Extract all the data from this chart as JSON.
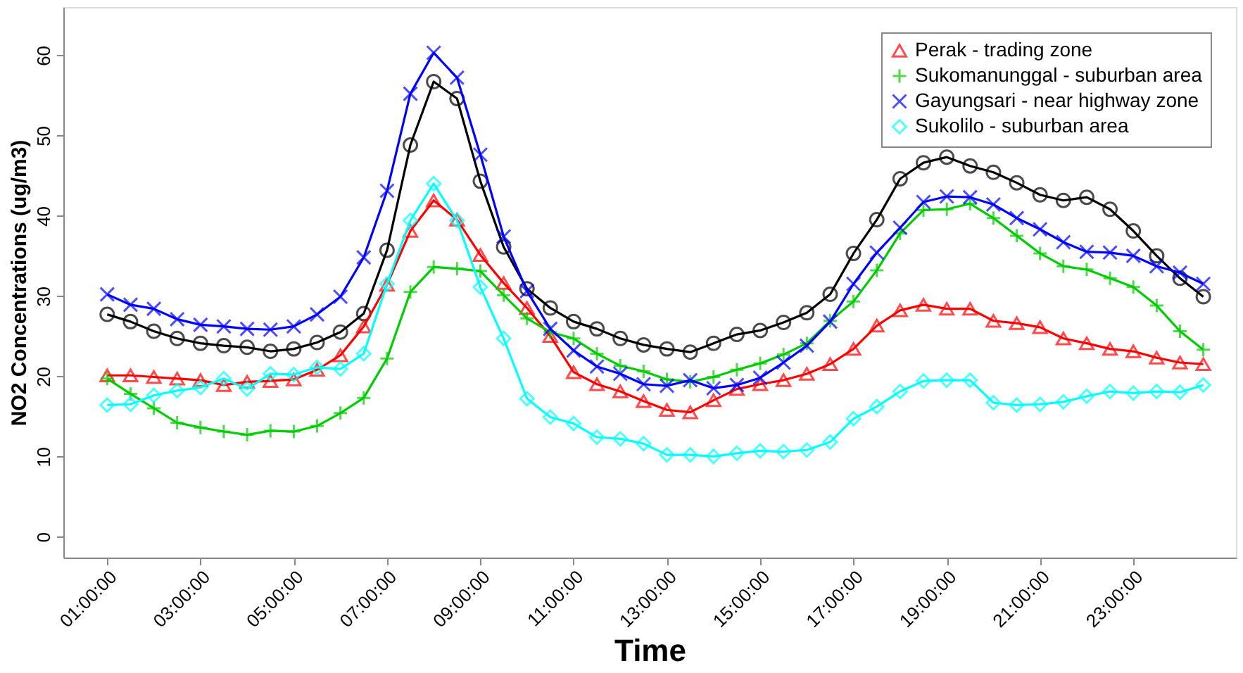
{
  "chart_data": {
    "type": "line",
    "xlabel": "Time",
    "ylabel": "NO2 Concentrations (ug/m3)",
    "x": [
      1,
      1.5,
      2,
      2.5,
      3,
      3.5,
      4,
      4.5,
      5,
      5.5,
      6,
      6.5,
      7,
      7.5,
      8,
      8.5,
      9,
      9.5,
      10,
      10.5,
      11,
      11.5,
      12,
      12.5,
      13,
      13.5,
      14,
      14.5,
      15,
      15.5,
      16,
      16.5,
      17,
      17.5,
      18,
      18.5,
      19,
      19.5,
      20,
      20.5,
      21,
      21.5,
      22,
      22.5,
      23,
      23.5,
      24,
      24.5
    ],
    "series": [
      {
        "color": "#000000",
        "marker": "circle",
        "values": [
          27.7,
          26.8,
          25.6,
          24.7,
          24.1,
          23.8,
          23.6,
          23.1,
          23.4,
          24.2,
          25.5,
          27.8,
          35.7,
          48.8,
          56.7,
          54.6,
          44.3,
          36.1,
          30.9,
          28.5,
          26.8,
          25.9,
          24.7,
          23.9,
          23.4,
          23.0,
          24.1,
          25.2,
          25.7,
          26.7,
          27.9,
          30.2,
          35.3,
          39.5,
          44.6,
          46.6,
          47.3,
          46.2,
          45.4,
          44.1,
          42.6,
          41.9,
          42.3,
          40.8,
          38.1,
          35.0,
          32.2,
          29.9
        ]
      },
      {
        "name": "Perak - trading zone",
        "color": "#ff0000",
        "marker": "triangle",
        "values": [
          20.1,
          20.1,
          19.9,
          19.7,
          19.5,
          18.9,
          19.3,
          19.4,
          19.6,
          20.8,
          22.6,
          26.2,
          31.4,
          38.1,
          41.9,
          39.5,
          35.1,
          31.6,
          28.5,
          25.0,
          20.5,
          19.0,
          18.1,
          16.9,
          15.8,
          15.5,
          17.0,
          18.4,
          19.0,
          19.5,
          20.3,
          21.5,
          23.4,
          26.3,
          28.2,
          28.9,
          28.4,
          28.4,
          26.9,
          26.6,
          26.1,
          24.7,
          24.1,
          23.4,
          23.1,
          22.3,
          21.7,
          21.5
        ]
      },
      {
        "name": "Sukomanunggal - suburban area",
        "color": "#00cd00",
        "marker": "plus",
        "values": [
          19.7,
          17.8,
          16.0,
          14.2,
          13.6,
          13.1,
          12.7,
          13.2,
          13.1,
          13.8,
          15.4,
          17.3,
          22.2,
          30.5,
          33.6,
          33.4,
          33.1,
          30.1,
          27.2,
          25.5,
          24.7,
          22.8,
          21.3,
          20.6,
          19.6,
          19.3,
          19.9,
          20.8,
          21.6,
          22.7,
          24.1,
          26.9,
          29.3,
          33.2,
          37.8,
          40.7,
          40.8,
          41.5,
          39.7,
          37.5,
          35.3,
          33.7,
          33.3,
          32.2,
          31.1,
          28.8,
          25.6,
          23.3
        ]
      },
      {
        "name": "Gayungsari - near highway zone",
        "color": "#0000ff",
        "marker": "cross",
        "values": [
          30.2,
          28.9,
          28.4,
          27.1,
          26.4,
          26.2,
          25.9,
          25.8,
          26.2,
          27.7,
          29.9,
          34.8,
          43.1,
          55.2,
          60.3,
          57.2,
          47.6,
          37.4,
          30.6,
          25.9,
          23.2,
          21.2,
          20.3,
          19.0,
          18.8,
          19.5,
          18.5,
          18.9,
          19.8,
          21.7,
          23.8,
          26.8,
          31.5,
          35.4,
          38.5,
          41.7,
          42.4,
          42.3,
          41.4,
          39.7,
          38.3,
          36.7,
          35.5,
          35.4,
          35.0,
          33.7,
          32.9,
          31.5
        ]
      },
      {
        "name": "Sukolilo - suburban area",
        "color": "#00ffff",
        "marker": "diamond",
        "values": [
          16.4,
          16.5,
          17.6,
          18.2,
          18.6,
          19.7,
          18.4,
          20.3,
          20.2,
          21.1,
          20.9,
          22.8,
          31.5,
          39.4,
          44.0,
          39.4,
          31.1,
          24.7,
          17.2,
          14.9,
          14.1,
          12.4,
          12.2,
          11.6,
          10.2,
          10.2,
          10.0,
          10.4,
          10.7,
          10.6,
          10.8,
          11.8,
          14.7,
          16.2,
          18.1,
          19.4,
          19.5,
          19.5,
          16.7,
          16.4,
          16.5,
          16.8,
          17.5,
          18.1,
          17.9,
          18.1,
          18.0,
          18.9
        ]
      }
    ],
    "xlim": [
      0.06,
      25.2
    ],
    "ylim": [
      -2.6,
      66
    ],
    "xticks": [
      {
        "value": 1,
        "label": "01:00:00"
      },
      {
        "value": 3,
        "label": "03:00:00"
      },
      {
        "value": 5,
        "label": "05:00:00"
      },
      {
        "value": 7,
        "label": "07:00:00"
      },
      {
        "value": 9,
        "label": "09:00:00"
      },
      {
        "value": 11,
        "label": "11:00:00"
      },
      {
        "value": 13,
        "label": "13:00:00"
      },
      {
        "value": 15,
        "label": "15:00:00"
      },
      {
        "value": 17,
        "label": "17:00:00"
      },
      {
        "value": 19,
        "label": "19:00:00"
      },
      {
        "value": 21,
        "label": "21:00:00"
      },
      {
        "value": 23,
        "label": "23:00:00"
      }
    ],
    "yticks": [
      0,
      10,
      20,
      30,
      40,
      50,
      60
    ],
    "grid": false,
    "legend": "top right",
    "line_style": "solid"
  }
}
